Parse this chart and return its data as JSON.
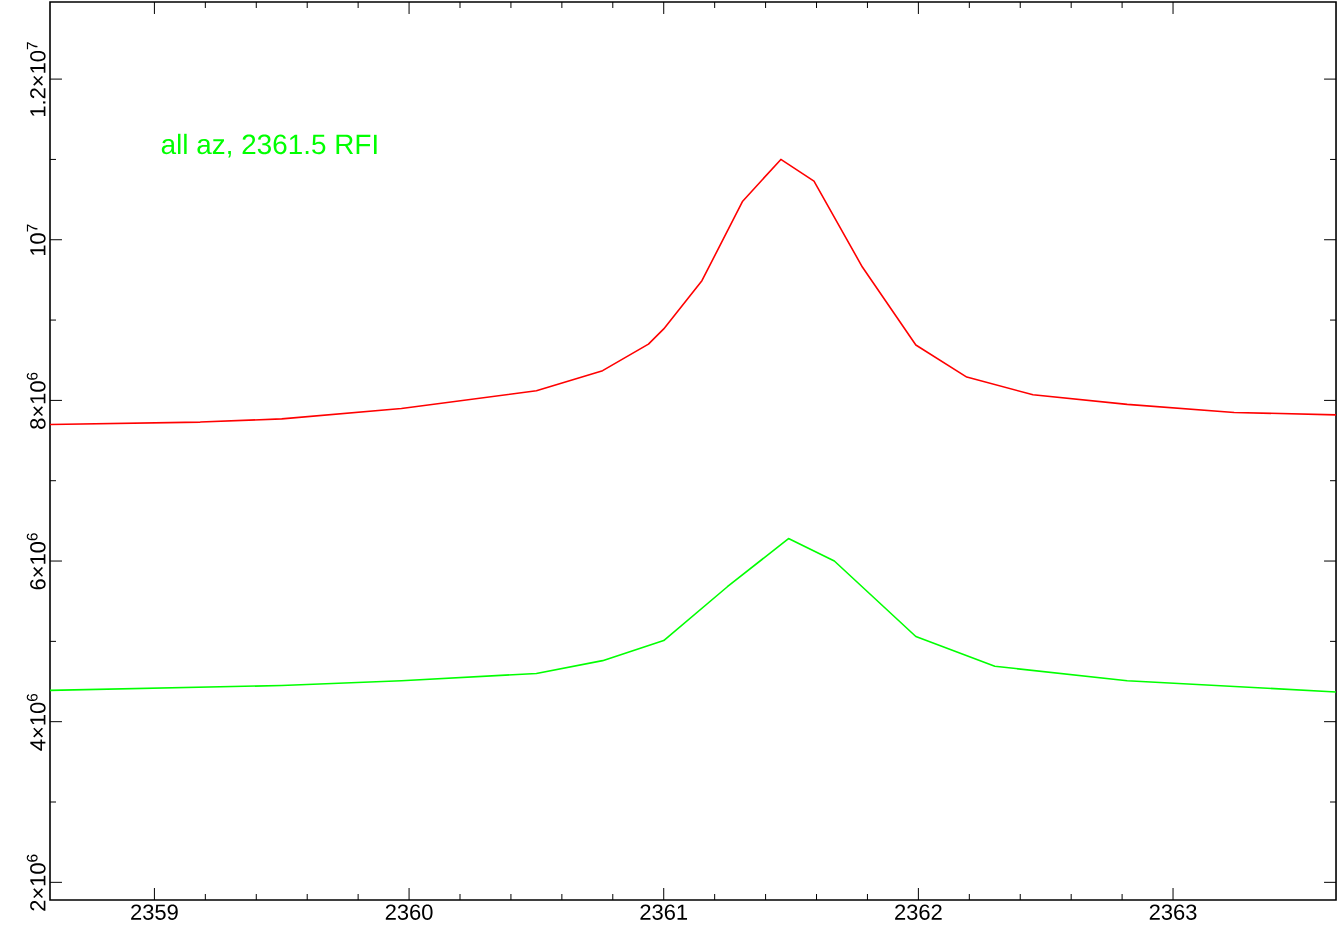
{
  "chart_data": {
    "type": "line",
    "annotations": [
      "all az, 2361.5 RFI"
    ],
    "xlim": [
      2358.59,
      2363.64
    ],
    "xticks": [
      2359,
      2360,
      2361,
      2362,
      2363
    ],
    "ylim": [
      1780000,
      12960000
    ],
    "yticks": [
      {
        "value": 2000000,
        "label": "2×10$^{6}$"
      },
      {
        "value": 4000000,
        "label": "4×10$^{6}$"
      },
      {
        "value": 6000000,
        "label": "6×10$^{6}$"
      },
      {
        "value": 8000000,
        "label": "8×10$^{6}$"
      },
      {
        "value": 10000000,
        "label": "10$^{7}$"
      },
      {
        "value": 12000000,
        "label": "1.2×10$^{7}$"
      }
    ],
    "grid": false,
    "marker": "none",
    "line_style": "solid",
    "series": [
      {
        "color": "#ff0000",
        "x": [
          2358.59,
          2359.18,
          2359.5,
          2359.97,
          2360.5,
          2360.76,
          2360.94,
          2361.0,
          2361.15,
          2361.31,
          2361.46,
          2361.59,
          2361.78,
          2361.99,
          2362.19,
          2362.45,
          2362.82,
          2363.24,
          2363.64
        ],
        "values": [
          7700000,
          7730000,
          7770000,
          7900000,
          8120000,
          8370000,
          8700000,
          8890000,
          9490000,
          10480000,
          11000000,
          10730000,
          9660000,
          8690000,
          8290000,
          8070000,
          7950000,
          7850000,
          7820000
        ]
      },
      {
        "color": "#00ff00",
        "x": [
          2358.59,
          2359.5,
          2359.97,
          2360.5,
          2360.76,
          2361.0,
          2361.25,
          2361.49,
          2361.67,
          2361.99,
          2362.3,
          2362.82,
          2363.64
        ],
        "values": [
          4390000,
          4450000,
          4510000,
          4600000,
          4760000,
          5010000,
          5680000,
          6280000,
          6000000,
          5060000,
          4690000,
          4510000,
          4370000
        ]
      }
    ]
  }
}
